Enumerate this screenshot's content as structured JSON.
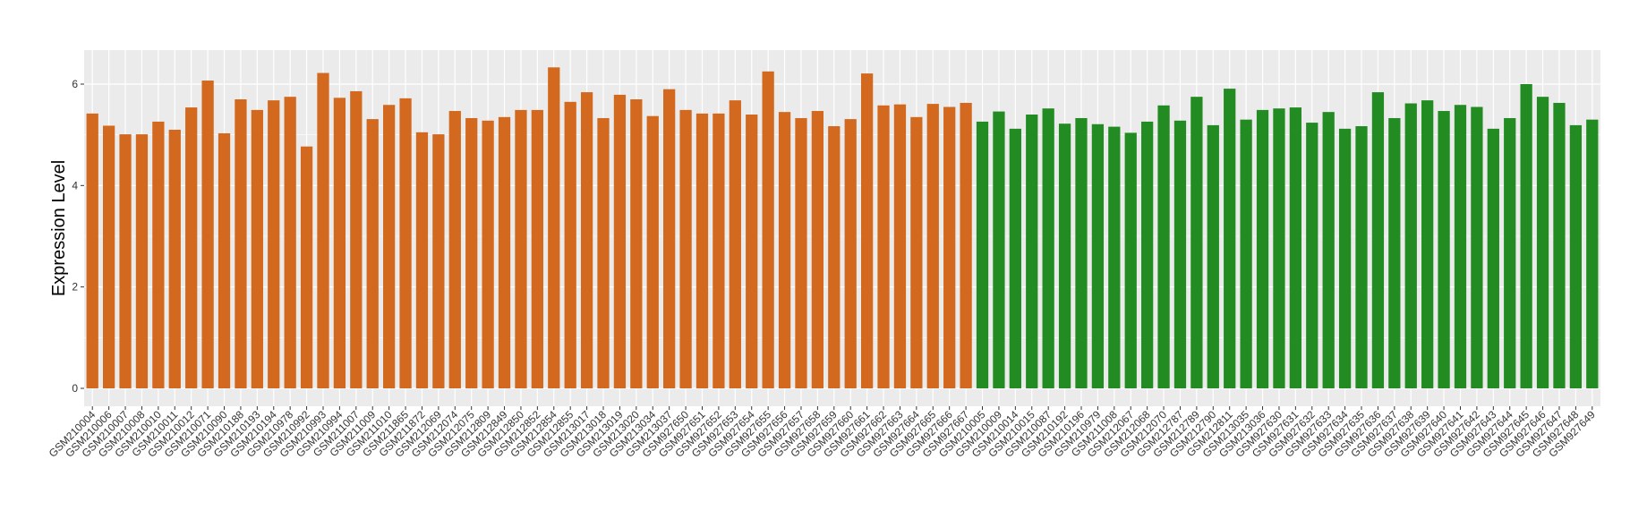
{
  "chart_data": {
    "type": "bar",
    "title": "",
    "xlabel": "",
    "ylabel": "Expression Level",
    "ylim": [
      0,
      6.65
    ],
    "yticks": [
      0,
      2,
      4,
      6
    ],
    "ytick_labels": [
      "0",
      "2",
      "4",
      "6"
    ],
    "grid": true,
    "legend": "none",
    "colors": {
      "group1": "#D2691E",
      "group2": "#228B22",
      "panel": "#EBEBEB",
      "gridline": "#FFFFFF"
    },
    "categories": [
      "GSM210004",
      "GSM210006",
      "GSM210007",
      "GSM210008",
      "GSM210010",
      "GSM210011",
      "GSM210012",
      "GSM210071",
      "GSM210090",
      "GSM210188",
      "GSM210193",
      "GSM210194",
      "GSM210978",
      "GSM210992",
      "GSM210993",
      "GSM210994",
      "GSM211007",
      "GSM211009",
      "GSM211010",
      "GSM211865",
      "GSM211872",
      "GSM212069",
      "GSM212074",
      "GSM212075",
      "GSM212809",
      "GSM212849",
      "GSM212850",
      "GSM212852",
      "GSM212854",
      "GSM212855",
      "GSM213017",
      "GSM213018",
      "GSM213019",
      "GSM213020",
      "GSM213034",
      "GSM213037",
      "GSM927650",
      "GSM927651",
      "GSM927652",
      "GSM927653",
      "GSM927654",
      "GSM927655",
      "GSM927656",
      "GSM927657",
      "GSM927658",
      "GSM927659",
      "GSM927660",
      "GSM927661",
      "GSM927662",
      "GSM927663",
      "GSM927664",
      "GSM927665",
      "GSM927666",
      "GSM927667",
      "GSM210005",
      "GSM210009",
      "GSM210014",
      "GSM210015",
      "GSM210087",
      "GSM210192",
      "GSM210196",
      "GSM210979",
      "GSM211008",
      "GSM212067",
      "GSM212068",
      "GSM212070",
      "GSM212787",
      "GSM212789",
      "GSM212790",
      "GSM212811",
      "GSM213035",
      "GSM213036",
      "GSM927630",
      "GSM927631",
      "GSM927632",
      "GSM927633",
      "GSM927634",
      "GSM927635",
      "GSM927636",
      "GSM927637",
      "GSM927638",
      "GSM927639",
      "GSM927640",
      "GSM927641",
      "GSM927642",
      "GSM927643",
      "GSM927644",
      "GSM927645",
      "GSM927646",
      "GSM927647",
      "GSM927648",
      "GSM927649"
    ],
    "values": [
      5.42,
      5.18,
      5.01,
      5.01,
      5.26,
      5.1,
      5.54,
      6.07,
      5.03,
      5.7,
      5.49,
      5.68,
      5.75,
      4.77,
      6.22,
      5.73,
      5.86,
      5.31,
      5.59,
      5.72,
      5.05,
      5.01,
      5.47,
      5.33,
      5.28,
      5.35,
      5.49,
      5.49,
      6.33,
      5.65,
      5.84,
      5.33,
      5.79,
      5.7,
      5.37,
      5.9,
      5.49,
      5.42,
      5.42,
      5.68,
      5.4,
      6.25,
      5.45,
      5.33,
      5.47,
      5.17,
      5.31,
      6.21,
      5.58,
      5.6,
      5.35,
      5.61,
      5.55,
      5.63,
      5.26,
      5.46,
      5.12,
      5.4,
      5.52,
      5.22,
      5.33,
      5.21,
      5.16,
      5.04,
      5.26,
      5.58,
      5.28,
      5.75,
      5.19,
      5.91,
      5.3,
      5.49,
      5.52,
      5.54,
      5.24,
      5.45,
      5.12,
      5.17,
      5.84,
      5.33,
      5.62,
      5.68,
      5.47,
      5.59,
      5.55,
      5.12,
      5.33,
      6.0,
      5.75,
      5.63,
      5.19,
      5.3
    ],
    "groups": [
      1,
      1,
      1,
      1,
      1,
      1,
      1,
      1,
      1,
      1,
      1,
      1,
      1,
      1,
      1,
      1,
      1,
      1,
      1,
      1,
      1,
      1,
      1,
      1,
      1,
      1,
      1,
      1,
      1,
      1,
      1,
      1,
      1,
      1,
      1,
      1,
      1,
      1,
      1,
      1,
      1,
      1,
      1,
      1,
      1,
      1,
      1,
      1,
      1,
      1,
      1,
      1,
      1,
      1,
      2,
      2,
      2,
      2,
      2,
      2,
      2,
      2,
      2,
      2,
      2,
      2,
      2,
      2,
      2,
      2,
      2,
      2,
      2,
      2,
      2,
      2,
      2,
      2,
      2,
      2,
      2,
      2,
      2,
      2,
      2,
      2,
      2,
      2,
      2,
      2,
      2,
      2
    ]
  }
}
